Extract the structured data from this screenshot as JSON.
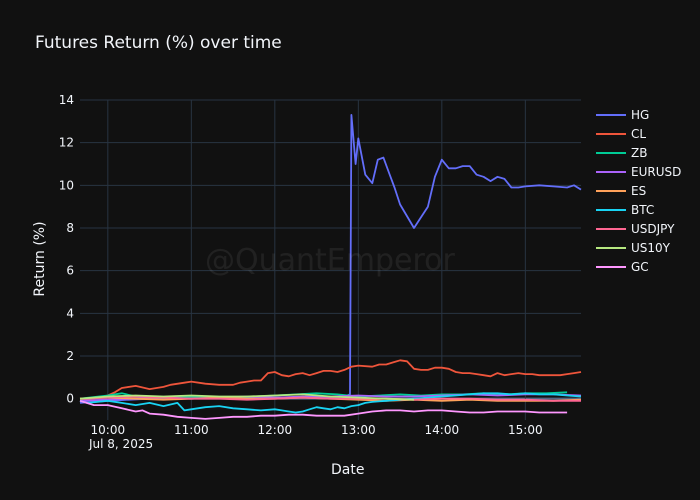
{
  "chart_data": {
    "type": "line",
    "title": "Futures Return (%) over time",
    "xlabel": "Date",
    "ylabel": "Return (%)",
    "x_date_label": "Jul 8, 2025",
    "watermark": "@QuantEmperor",
    "xlim": [
      "09:40",
      "15:40"
    ],
    "ylim": [
      -1.0,
      14.0
    ],
    "x_ticks": [
      "10:00",
      "11:00",
      "12:00",
      "13:00",
      "14:00",
      "15:00"
    ],
    "y_ticks": [
      0,
      2,
      4,
      6,
      8,
      10,
      12,
      14
    ],
    "grid": true,
    "legend_position": "right",
    "series": [
      {
        "name": "HG",
        "color": "#636efa",
        "x": [
          "09:40",
          "10:00",
          "10:30",
          "11:00",
          "11:30",
          "12:00",
          "12:30",
          "12:50",
          "12:54",
          "12:55",
          "12:58",
          "13:00",
          "13:05",
          "13:10",
          "13:14",
          "13:18",
          "13:22",
          "13:26",
          "13:30",
          "13:40",
          "13:45",
          "13:50",
          "13:55",
          "14:00",
          "14:05",
          "14:10",
          "14:15",
          "14:20",
          "14:25",
          "14:30",
          "14:35",
          "14:40",
          "14:45",
          "14:50",
          "14:55",
          "15:00",
          "15:10",
          "15:20",
          "15:30",
          "15:35",
          "15:40"
        ],
        "y": [
          -0.2,
          -0.1,
          0.0,
          0.1,
          0.05,
          0.05,
          0.05,
          0.1,
          0.2,
          13.3,
          11.0,
          12.2,
          10.5,
          10.1,
          11.2,
          11.3,
          10.6,
          9.9,
          9.1,
          8.0,
          8.5,
          9.0,
          10.4,
          11.2,
          10.8,
          10.8,
          10.9,
          10.9,
          10.5,
          10.4,
          10.2,
          10.4,
          10.3,
          9.9,
          9.9,
          9.95,
          10.0,
          9.95,
          9.9,
          10.0,
          9.8
        ]
      },
      {
        "name": "CL",
        "color": "#ef553b",
        "x": [
          "09:40",
          "09:50",
          "10:00",
          "10:05",
          "10:10",
          "10:20",
          "10:30",
          "10:40",
          "10:45",
          "10:55",
          "11:00",
          "11:10",
          "11:20",
          "11:30",
          "11:35",
          "11:40",
          "11:45",
          "11:50",
          "11:55",
          "12:00",
          "12:05",
          "12:10",
          "12:15",
          "12:20",
          "12:25",
          "12:30",
          "12:35",
          "12:40",
          "12:45",
          "12:50",
          "12:55",
          "13:00",
          "13:10",
          "13:15",
          "13:20",
          "13:25",
          "13:30",
          "13:35",
          "13:40",
          "13:45",
          "13:50",
          "13:55",
          "14:00",
          "14:05",
          "14:10",
          "14:15",
          "14:20",
          "14:25",
          "14:30",
          "14:35",
          "14:40",
          "14:45",
          "14:50",
          "14:55",
          "15:00",
          "15:05",
          "15:10",
          "15:15",
          "15:20",
          "15:25",
          "15:30",
          "15:35",
          "15:40"
        ],
        "y": [
          -0.1,
          0.0,
          0.15,
          0.3,
          0.5,
          0.6,
          0.45,
          0.55,
          0.65,
          0.75,
          0.8,
          0.7,
          0.65,
          0.65,
          0.75,
          0.8,
          0.85,
          0.85,
          1.2,
          1.25,
          1.1,
          1.05,
          1.15,
          1.2,
          1.1,
          1.2,
          1.3,
          1.3,
          1.25,
          1.35,
          1.5,
          1.55,
          1.5,
          1.6,
          1.6,
          1.7,
          1.8,
          1.75,
          1.4,
          1.35,
          1.35,
          1.45,
          1.45,
          1.4,
          1.25,
          1.2,
          1.2,
          1.15,
          1.1,
          1.05,
          1.2,
          1.1,
          1.15,
          1.2,
          1.15,
          1.15,
          1.1,
          1.1,
          1.1,
          1.1,
          1.15,
          1.2,
          1.25
        ]
      },
      {
        "name": "ZB",
        "color": "#00cc96",
        "x": [
          "09:40",
          "10:00",
          "10:10",
          "10:20",
          "10:30",
          "10:45",
          "11:00",
          "11:15",
          "11:30",
          "11:45",
          "12:00",
          "12:15",
          "12:30",
          "12:45",
          "13:00",
          "13:15",
          "13:30",
          "13:45",
          "14:00",
          "14:15",
          "14:30",
          "14:45",
          "15:00",
          "15:15",
          "15:30"
        ],
        "y": [
          0.0,
          0.15,
          0.25,
          0.1,
          0.0,
          0.05,
          0.1,
          0.1,
          0.05,
          0.1,
          0.15,
          0.2,
          0.25,
          0.2,
          0.1,
          0.15,
          0.2,
          0.15,
          0.2,
          0.2,
          0.25,
          0.2,
          0.25,
          0.25,
          0.3
        ]
      },
      {
        "name": "EURUSD",
        "color": "#ab63fa",
        "x": [
          "09:40",
          "10:00",
          "10:20",
          "10:40",
          "11:00",
          "11:20",
          "11:40",
          "12:00",
          "12:20",
          "12:40",
          "13:00",
          "13:20",
          "13:40",
          "14:00",
          "14:20",
          "14:40",
          "15:00",
          "15:20",
          "15:40"
        ],
        "y": [
          -0.1,
          -0.05,
          0.0,
          0.05,
          0.0,
          0.05,
          0.1,
          0.05,
          0.1,
          0.1,
          0.15,
          0.1,
          0.1,
          0.15,
          0.2,
          0.15,
          0.2,
          0.2,
          0.15
        ]
      },
      {
        "name": "ES",
        "color": "#ffa15a",
        "x": [
          "09:40",
          "10:00",
          "10:20",
          "10:40",
          "11:00",
          "11:20",
          "11:40",
          "12:00",
          "12:20",
          "12:40",
          "13:00",
          "13:20",
          "13:40",
          "14:00",
          "14:20",
          "14:40",
          "15:00",
          "15:20",
          "15:40"
        ],
        "y": [
          0.0,
          0.05,
          0.0,
          -0.05,
          0.0,
          0.05,
          0.0,
          0.0,
          0.05,
          0.0,
          -0.05,
          -0.1,
          -0.05,
          -0.1,
          -0.05,
          -0.1,
          -0.1,
          -0.1,
          -0.05
        ]
      },
      {
        "name": "BTC",
        "color": "#19d3f3",
        "x": [
          "09:40",
          "09:45",
          "10:00",
          "10:10",
          "10:20",
          "10:30",
          "10:40",
          "10:50",
          "10:55",
          "11:00",
          "11:10",
          "11:20",
          "11:30",
          "11:40",
          "11:50",
          "12:00",
          "12:05",
          "12:10",
          "12:15",
          "12:20",
          "12:25",
          "12:30",
          "12:35",
          "12:40",
          "12:45",
          "12:50",
          "12:55",
          "13:00",
          "13:05",
          "13:10",
          "13:20",
          "13:30",
          "13:40",
          "13:50",
          "14:00",
          "14:10",
          "14:20",
          "14:30",
          "14:40",
          "14:50",
          "15:00",
          "15:10",
          "15:20",
          "15:30",
          "15:40"
        ],
        "y": [
          -0.1,
          -0.2,
          -0.1,
          -0.2,
          -0.3,
          -0.2,
          -0.35,
          -0.2,
          -0.55,
          -0.5,
          -0.4,
          -0.35,
          -0.45,
          -0.5,
          -0.55,
          -0.5,
          -0.55,
          -0.6,
          -0.65,
          -0.6,
          -0.5,
          -0.4,
          -0.45,
          -0.5,
          -0.4,
          -0.45,
          -0.35,
          -0.3,
          -0.2,
          -0.15,
          -0.1,
          -0.05,
          0.0,
          0.05,
          0.1,
          0.15,
          0.2,
          0.25,
          0.25,
          0.2,
          0.25,
          0.2,
          0.2,
          0.15,
          0.1
        ]
      },
      {
        "name": "USDJPY",
        "color": "#ff6692",
        "x": [
          "09:40",
          "10:00",
          "10:20",
          "10:40",
          "11:00",
          "11:20",
          "11:40",
          "12:00",
          "12:20",
          "12:40",
          "13:00",
          "13:20",
          "13:40",
          "14:00",
          "14:20",
          "14:40",
          "15:00",
          "15:20",
          "15:40"
        ],
        "y": [
          0.0,
          0.05,
          0.1,
          0.05,
          0.0,
          0.0,
          -0.05,
          0.0,
          0.05,
          0.0,
          0.0,
          0.0,
          -0.05,
          0.0,
          0.0,
          -0.05,
          -0.05,
          -0.1,
          -0.1
        ]
      },
      {
        "name": "US10Y",
        "color": "#b6e880",
        "x": [
          "09:40",
          "10:00",
          "10:20",
          "10:40",
          "11:00",
          "11:20",
          "11:40",
          "12:00",
          "12:20",
          "12:40",
          "13:00",
          "13:20",
          "13:40"
        ],
        "y": [
          0.0,
          0.1,
          0.15,
          0.1,
          0.15,
          0.1,
          0.1,
          0.15,
          0.2,
          0.1,
          0.05,
          0.0,
          -0.05
        ]
      },
      {
        "name": "GC",
        "color": "#ff97ff",
        "x": [
          "09:40",
          "09:50",
          "10:00",
          "10:10",
          "10:20",
          "10:25",
          "10:30",
          "10:40",
          "10:50",
          "11:00",
          "11:10",
          "11:20",
          "11:30",
          "11:40",
          "11:50",
          "12:00",
          "12:10",
          "12:20",
          "12:30",
          "12:40",
          "12:50",
          "13:00",
          "13:10",
          "13:20",
          "13:30",
          "13:40",
          "13:50",
          "14:00",
          "14:10",
          "14:20",
          "14:30",
          "14:40",
          "14:50",
          "15:00",
          "15:10",
          "15:20",
          "15:30"
        ],
        "y": [
          -0.1,
          -0.3,
          -0.3,
          -0.45,
          -0.6,
          -0.55,
          -0.7,
          -0.75,
          -0.85,
          -0.9,
          -0.95,
          -0.9,
          -0.85,
          -0.85,
          -0.8,
          -0.8,
          -0.75,
          -0.75,
          -0.8,
          -0.8,
          -0.8,
          -0.7,
          -0.6,
          -0.55,
          -0.55,
          -0.6,
          -0.55,
          -0.55,
          -0.6,
          -0.65,
          -0.65,
          -0.6,
          -0.6,
          -0.6,
          -0.65,
          -0.65,
          -0.65
        ]
      }
    ]
  }
}
